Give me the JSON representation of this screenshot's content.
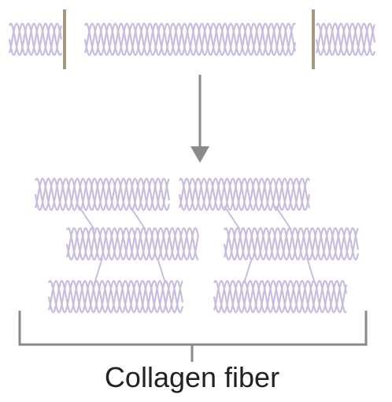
{
  "label": "Collagen fiber"
}
